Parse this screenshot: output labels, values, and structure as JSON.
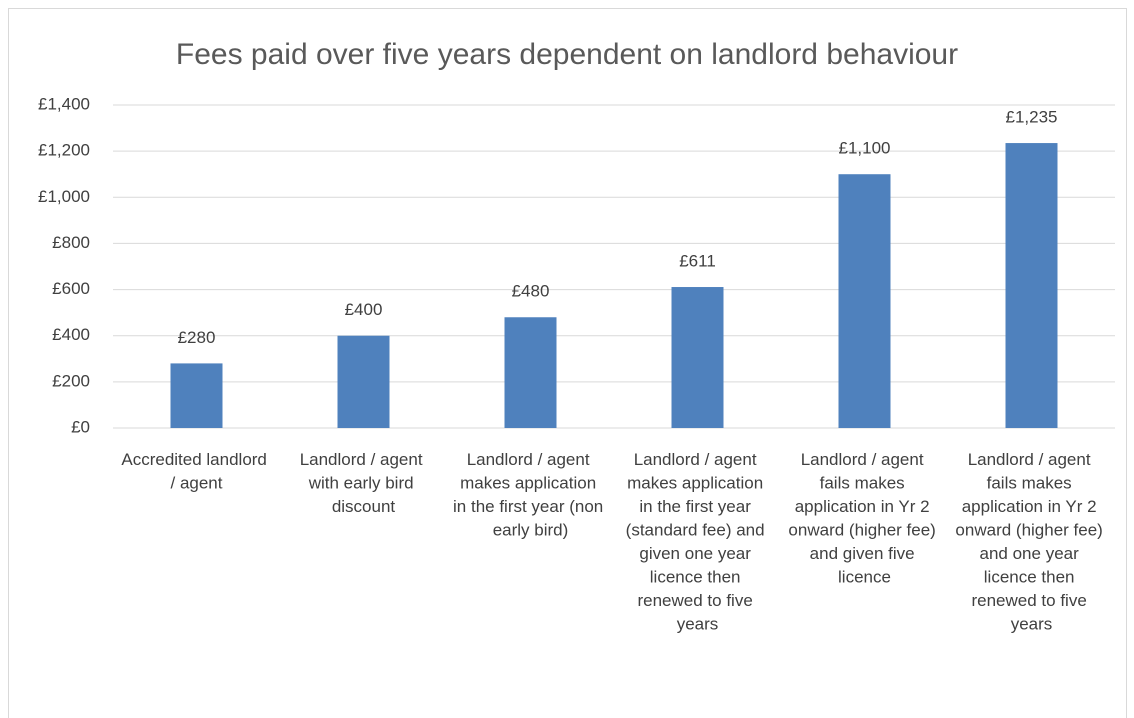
{
  "chart_data": {
    "type": "bar",
    "title": "Fees paid over five years dependent on landlord behaviour",
    "categories": [
      "Accredited landlord / agent",
      "Landlord / agent with early bird discount",
      "Landlord / agent makes application in the first year (non early bird)",
      "Landlord / agent makes application in the first year (standard fee) and given one year licence then renewed to five years",
      "Landlord / agent fails makes application in Yr 2 onward (higher fee) and given five licence",
      "Landlord / agent fails makes application in Yr 2 onward (higher fee) and one year licence then renewed to five years"
    ],
    "values": [
      280,
      400,
      480,
      611,
      1100,
      1235
    ],
    "value_labels": [
      "£280",
      "£400",
      "£480",
      "£611",
      "£1,100",
      "£1,235"
    ],
    "color": "#4f81bd",
    "ylim": [
      0,
      1400
    ],
    "yticks": [
      {
        "value": 0,
        "label": "£0"
      },
      {
        "value": 200,
        "label": "£200"
      },
      {
        "value": 400,
        "label": "£400"
      },
      {
        "value": 600,
        "label": "£600"
      },
      {
        "value": 800,
        "label": "£800"
      },
      {
        "value": 1000,
        "label": "£1,000"
      },
      {
        "value": 1200,
        "label": "£1,200"
      },
      {
        "value": 1400,
        "label": "£1,400"
      }
    ],
    "grid": true
  }
}
